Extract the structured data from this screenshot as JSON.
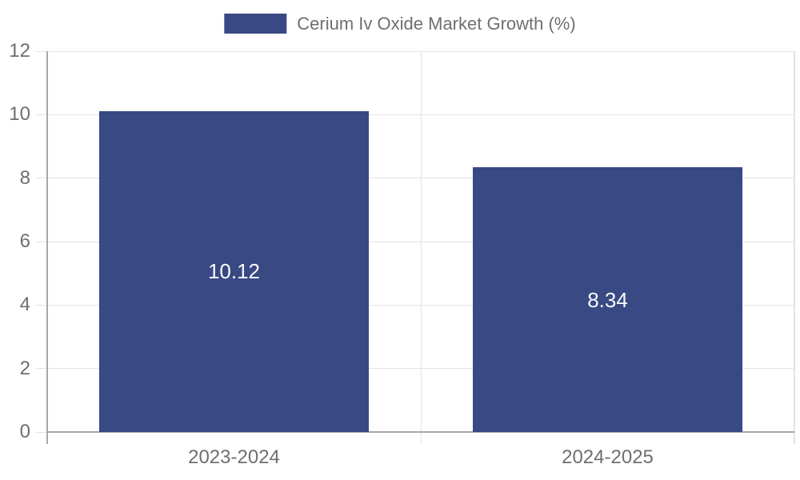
{
  "legend": {
    "label": "Cerium Iv Oxide Market Growth (%)"
  },
  "chart_data": {
    "type": "bar",
    "title": "Cerium Iv Oxide Market Growth (%)",
    "categories": [
      "2023-2024",
      "2024-2025"
    ],
    "values": [
      10.12,
      8.34
    ],
    "value_labels": [
      "10.12",
      "8.34"
    ],
    "ylabel": "",
    "xlabel": "",
    "ylim": [
      0,
      12
    ],
    "yticks": [
      0,
      2,
      4,
      6,
      8,
      10,
      12
    ],
    "grid": true,
    "legend_position": "top-center",
    "colors": {
      "bar": "#384984",
      "value_label": "#FAFAFA",
      "tick_label": "#6F6F6F",
      "legend_label": "#6F6F6F",
      "gridline": "#E3E3E3",
      "axis": "#A8A8A8",
      "background": "#FFFFFF"
    }
  }
}
